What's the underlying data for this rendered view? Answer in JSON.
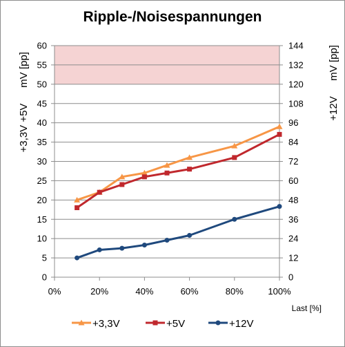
{
  "chart_data": {
    "type": "line",
    "title": "Ripple-/Noisespannungen",
    "xlabel": "Last [%]",
    "x_ticks": [
      "0%",
      "20%",
      "40%",
      "60%",
      "80%",
      "100%"
    ],
    "xlim": [
      0,
      100
    ],
    "y_left": {
      "label_lines": [
        "+3,3V +5V",
        "mV [pp]"
      ],
      "ylim": [
        0,
        60
      ],
      "ticks": [
        0,
        5,
        10,
        15,
        20,
        25,
        30,
        35,
        40,
        45,
        50,
        55,
        60
      ]
    },
    "y_right": {
      "label_lines": [
        "+12V",
        "mV [pp]"
      ],
      "ylim": [
        0,
        144
      ],
      "ticks": [
        0,
        12,
        24,
        36,
        48,
        60,
        72,
        84,
        96,
        108,
        120,
        132,
        144
      ]
    },
    "limit_band": {
      "axis": "left",
      "from": 50,
      "to": 60,
      "color": "#f5d3d3"
    },
    "grid": true,
    "legend_position": "bottom",
    "series": [
      {
        "name": "+3,3V",
        "axis": "left",
        "color": "#f79646",
        "marker": "triangle",
        "x": [
          10,
          20,
          30,
          40,
          50,
          60,
          80,
          100
        ],
        "values": [
          20,
          22,
          26,
          27,
          29,
          31,
          34,
          39
        ]
      },
      {
        "name": "+5V",
        "axis": "left",
        "color": "#c0282d",
        "marker": "square",
        "x": [
          10,
          20,
          30,
          40,
          50,
          60,
          80,
          100
        ],
        "values": [
          18,
          22,
          24,
          26,
          27,
          28,
          31,
          37
        ]
      },
      {
        "name": "+12V",
        "axis": "right",
        "color": "#1f497d",
        "marker": "circle",
        "x": [
          10,
          20,
          30,
          40,
          50,
          60,
          80,
          100
        ],
        "values": [
          12,
          17,
          18,
          20,
          23,
          26,
          36,
          44
        ]
      }
    ]
  }
}
